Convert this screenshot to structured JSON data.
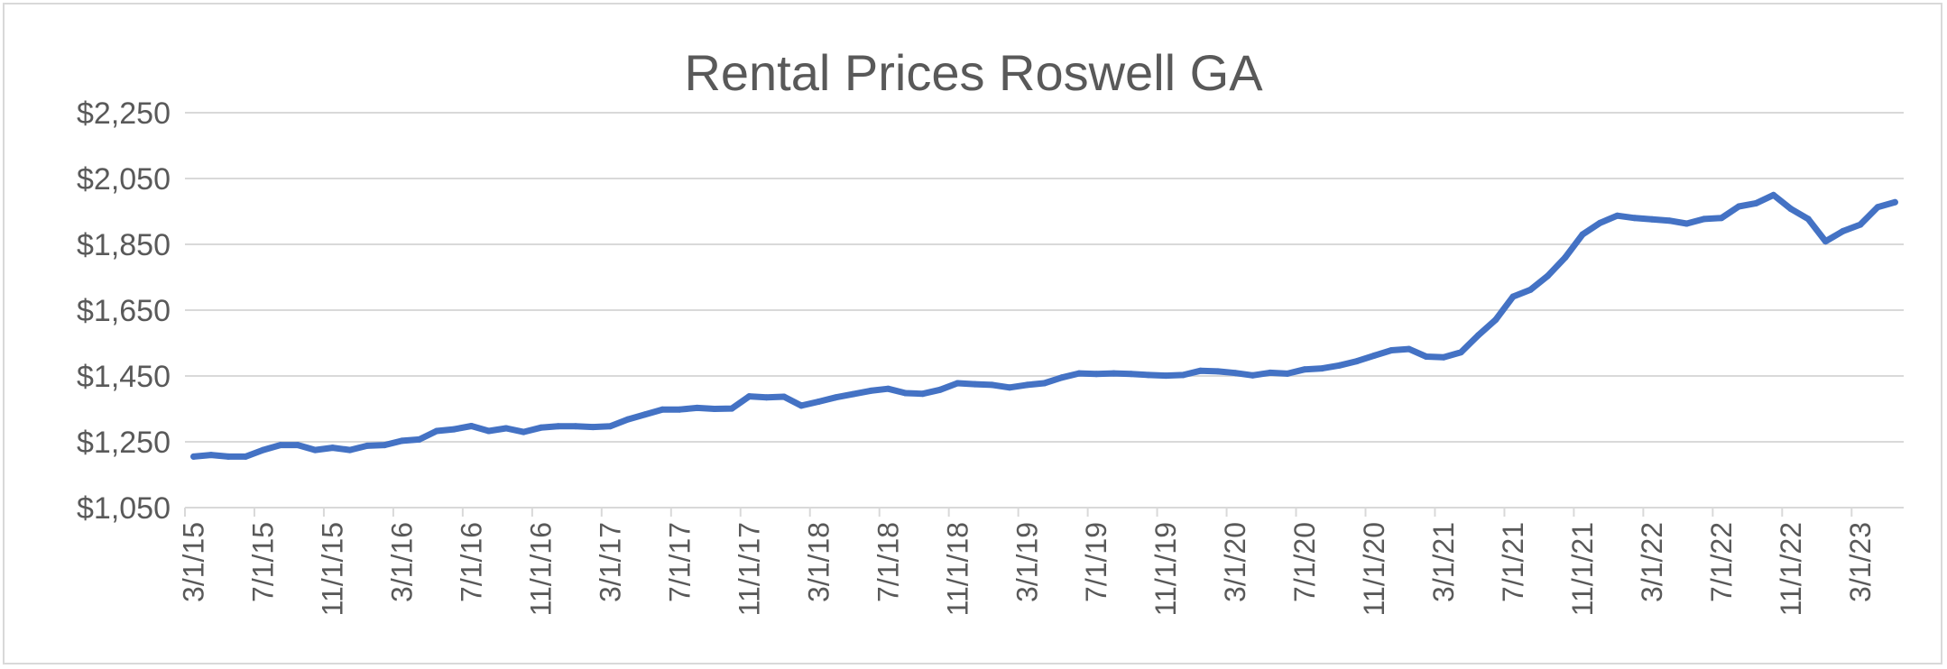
{
  "chart_data": {
    "type": "line",
    "title": "Rental Prices Roswell GA",
    "xlabel": "",
    "ylabel": "",
    "ylim": [
      1050,
      2250
    ],
    "y_ticks": [
      "$1,050",
      "$1,250",
      "$1,450",
      "$1,650",
      "$1,850",
      "$2,050",
      "$2,250"
    ],
    "x_tick_labels": [
      "3/1/15",
      "7/1/15",
      "11/1/15",
      "3/1/16",
      "7/1/16",
      "11/1/16",
      "3/1/17",
      "7/1/17",
      "11/1/17",
      "3/1/18",
      "7/1/18",
      "11/1/18",
      "3/1/19",
      "7/1/19",
      "11/1/19",
      "3/1/20",
      "7/1/20",
      "11/1/20",
      "3/1/21",
      "7/1/21",
      "11/1/21",
      "3/1/22",
      "7/1/22",
      "11/1/22",
      "3/1/23"
    ],
    "grid": true,
    "legend": "none",
    "x_start": "3/1/15",
    "x_interval": "1 month",
    "series": [
      {
        "color": "#4472c4",
        "values": [
          1205,
          1210,
          1205,
          1205,
          1225,
          1240,
          1240,
          1225,
          1232,
          1225,
          1238,
          1240,
          1253,
          1257,
          1283,
          1288,
          1298,
          1283,
          1291,
          1280,
          1293,
          1297,
          1297,
          1295,
          1297,
          1318,
          1333,
          1348,
          1348,
          1353,
          1350,
          1351,
          1388,
          1385,
          1387,
          1360,
          1372,
          1385,
          1395,
          1405,
          1411,
          1398,
          1396,
          1408,
          1428,
          1425,
          1423,
          1415,
          1423,
          1428,
          1445,
          1458,
          1456,
          1458,
          1456,
          1453,
          1451,
          1453,
          1466,
          1464,
          1459,
          1452,
          1460,
          1457,
          1470,
          1473,
          1482,
          1495,
          1512,
          1528,
          1532,
          1509,
          1507,
          1522,
          1574,
          1621,
          1691,
          1712,
          1754,
          1810,
          1880,
          1915,
          1937,
          1930,
          1926,
          1922,
          1913,
          1927,
          1930,
          1965,
          1975,
          2000,
          1958,
          1927,
          1859,
          1890,
          1910,
          1963,
          1978
        ]
      }
    ]
  }
}
